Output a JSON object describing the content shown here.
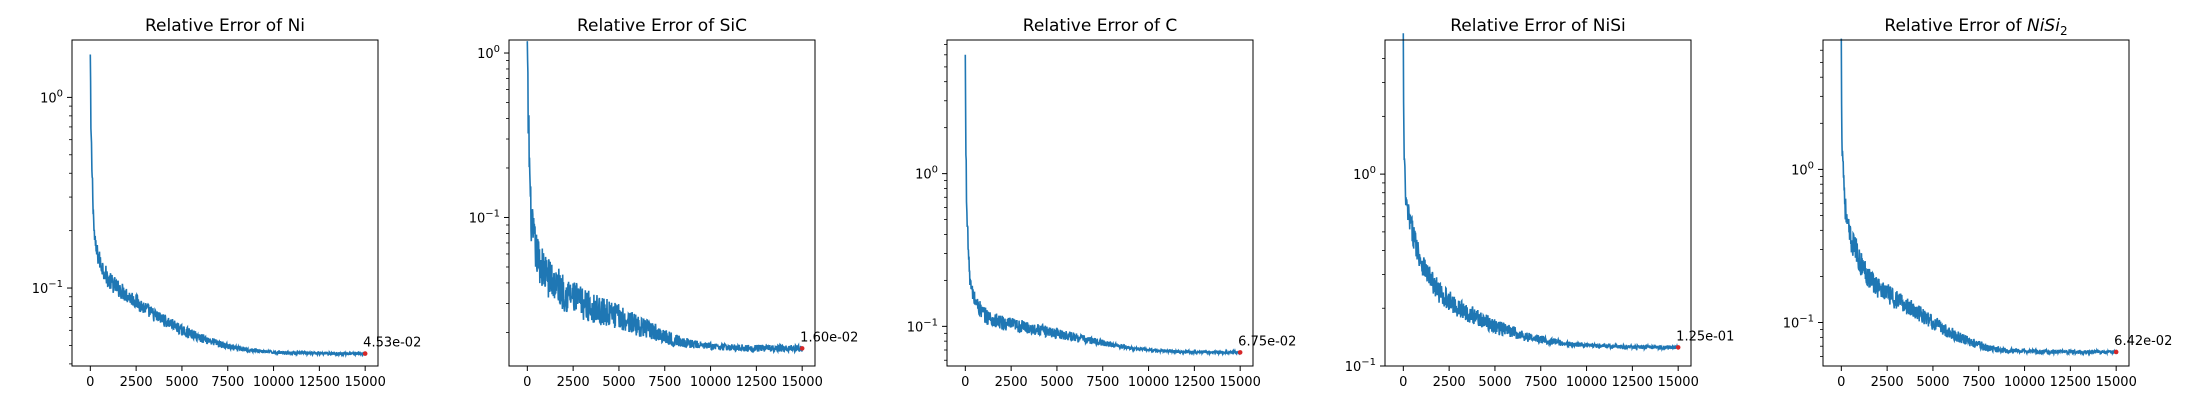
{
  "figure": {
    "line_color": "#1f77b4",
    "marker_color": "#d62728"
  },
  "chart_data": [
    {
      "type": "line",
      "title": "Relative Error of Ni",
      "y_scale": "log",
      "xlim": [
        -1000,
        15700
      ],
      "ylim": [
        0.039,
        2.0
      ],
      "xticks": [
        0,
        2500,
        5000,
        7500,
        10000,
        12500,
        15000
      ],
      "yticks": [
        {
          "value": 0.1,
          "label": "10",
          "sup": "−1"
        },
        {
          "value": 1,
          "label": "10",
          "sup": "0"
        }
      ],
      "x": [
        0,
        30,
        80,
        150,
        200,
        300,
        500,
        800,
        1000,
        1500,
        2000,
        2500,
        3000,
        3500,
        4000,
        4500,
        5000,
        6000,
        7000,
        8000,
        9000,
        10000,
        11000,
        12000,
        13000,
        14000,
        15000
      ],
      "y": [
        1.6,
        0.7,
        0.45,
        0.28,
        0.2,
        0.16,
        0.14,
        0.12,
        0.11,
        0.1,
        0.092,
        0.085,
        0.078,
        0.072,
        0.068,
        0.064,
        0.06,
        0.055,
        0.051,
        0.048,
        0.047,
        0.046,
        0.0458,
        0.0455,
        0.0454,
        0.0453,
        0.0453
      ],
      "noise": 0.12,
      "final_point": {
        "x": 15000,
        "y": 0.0453
      },
      "annotation": "4.53e-02",
      "grid": false
    },
    {
      "type": "line",
      "title": "Relative Error of SiC",
      "y_scale": "log",
      "xlim": [
        -1000,
        15700
      ],
      "ylim": [
        0.0125,
        1.2
      ],
      "xticks": [
        0,
        2500,
        5000,
        7500,
        10000,
        12500,
        15000
      ],
      "yticks": [
        {
          "value": 0.1,
          "label": "10",
          "sup": "−1"
        },
        {
          "value": 1,
          "label": "10",
          "sup": "0"
        }
      ],
      "x": [
        0,
        30,
        80,
        150,
        200,
        300,
        500,
        800,
        1000,
        1500,
        2000,
        3000,
        4000,
        5000,
        6000,
        7000,
        8000,
        9000,
        10000,
        11000,
        12000,
        13000,
        14000,
        15000
      ],
      "y": [
        1.0,
        0.5,
        0.3,
        0.15,
        0.1,
        0.08,
        0.06,
        0.05,
        0.045,
        0.04,
        0.035,
        0.03,
        0.027,
        0.025,
        0.022,
        0.02,
        0.018,
        0.017,
        0.0165,
        0.0162,
        0.0161,
        0.016,
        0.016,
        0.016
      ],
      "noise": 0.32,
      "final_point": {
        "x": 15000,
        "y": 0.016
      },
      "annotation": "1.60e-02",
      "grid": false
    },
    {
      "type": "line",
      "title": "Relative Error of C",
      "y_scale": "log",
      "xlim": [
        -1000,
        15700
      ],
      "ylim": [
        0.055,
        7.5
      ],
      "xticks": [
        0,
        2500,
        5000,
        7500,
        10000,
        12500,
        15000
      ],
      "yticks": [
        {
          "value": 0.1,
          "label": "10",
          "sup": "−1"
        },
        {
          "value": 1,
          "label": "10",
          "sup": "0"
        }
      ],
      "x": [
        0,
        30,
        80,
        150,
        200,
        300,
        500,
        800,
        1000,
        1500,
        2000,
        3000,
        4000,
        5000,
        6000,
        7000,
        8000,
        9000,
        10000,
        11000,
        12000,
        13000,
        14000,
        15000
      ],
      "y": [
        5.5,
        1.5,
        0.6,
        0.35,
        0.25,
        0.18,
        0.15,
        0.13,
        0.12,
        0.11,
        0.105,
        0.1,
        0.095,
        0.09,
        0.085,
        0.08,
        0.076,
        0.072,
        0.07,
        0.069,
        0.068,
        0.0678,
        0.0676,
        0.0675
      ],
      "noise": 0.14,
      "final_point": {
        "x": 15000,
        "y": 0.0675
      },
      "annotation": "6.75e-02",
      "grid": false
    },
    {
      "type": "line",
      "title": "Relative Error of NiSi",
      "y_scale": "log",
      "xlim": [
        -1000,
        15700
      ],
      "ylim": [
        0.1,
        5.0
      ],
      "xticks": [
        0,
        2500,
        5000,
        7500,
        10000,
        12500,
        15000
      ],
      "yticks": [
        {
          "value": 0.1,
          "label": "10",
          "sup": "−1"
        },
        {
          "value": 1,
          "label": "10",
          "sup": "0"
        }
      ],
      "x": [
        0,
        30,
        80,
        150,
        200,
        300,
        500,
        800,
        1000,
        1500,
        2000,
        3000,
        4000,
        5000,
        6000,
        7000,
        8000,
        9000,
        10000,
        11000,
        12000,
        13000,
        14000,
        15000
      ],
      "y": [
        4.8,
        1.5,
        0.9,
        0.7,
        0.65,
        0.6,
        0.5,
        0.4,
        0.35,
        0.28,
        0.24,
        0.2,
        0.18,
        0.16,
        0.15,
        0.14,
        0.135,
        0.13,
        0.128,
        0.127,
        0.126,
        0.1255,
        0.125,
        0.125
      ],
      "noise": 0.16,
      "final_point": {
        "x": 15000,
        "y": 0.125
      },
      "annotation": "1.25e-01",
      "grid": false
    },
    {
      "type": "line",
      "title": "Relative Error of NiSi₂",
      "y_scale": "log",
      "xlim": [
        -1000,
        15700
      ],
      "ylim": [
        0.052,
        7.0
      ],
      "xticks": [
        0,
        2500,
        5000,
        7500,
        10000,
        12500,
        15000
      ],
      "yticks": [
        {
          "value": 0.1,
          "label": "10",
          "sup": "−1"
        },
        {
          "value": 1,
          "label": "10",
          "sup": "0"
        }
      ],
      "x": [
        0,
        30,
        80,
        150,
        200,
        300,
        500,
        800,
        1000,
        1500,
        2000,
        3000,
        4000,
        5000,
        6000,
        7000,
        8000,
        9000,
        10000,
        11000,
        12000,
        13000,
        14000,
        15000
      ],
      "y": [
        6.0,
        2.0,
        1.2,
        0.8,
        0.6,
        0.45,
        0.35,
        0.3,
        0.25,
        0.2,
        0.17,
        0.14,
        0.12,
        0.1,
        0.085,
        0.075,
        0.068,
        0.066,
        0.065,
        0.0645,
        0.0643,
        0.0642,
        0.0642,
        0.0642
      ],
      "noise": 0.2,
      "final_point": {
        "x": 15000,
        "y": 0.0642
      },
      "annotation": "6.42e-02",
      "grid": false
    }
  ]
}
